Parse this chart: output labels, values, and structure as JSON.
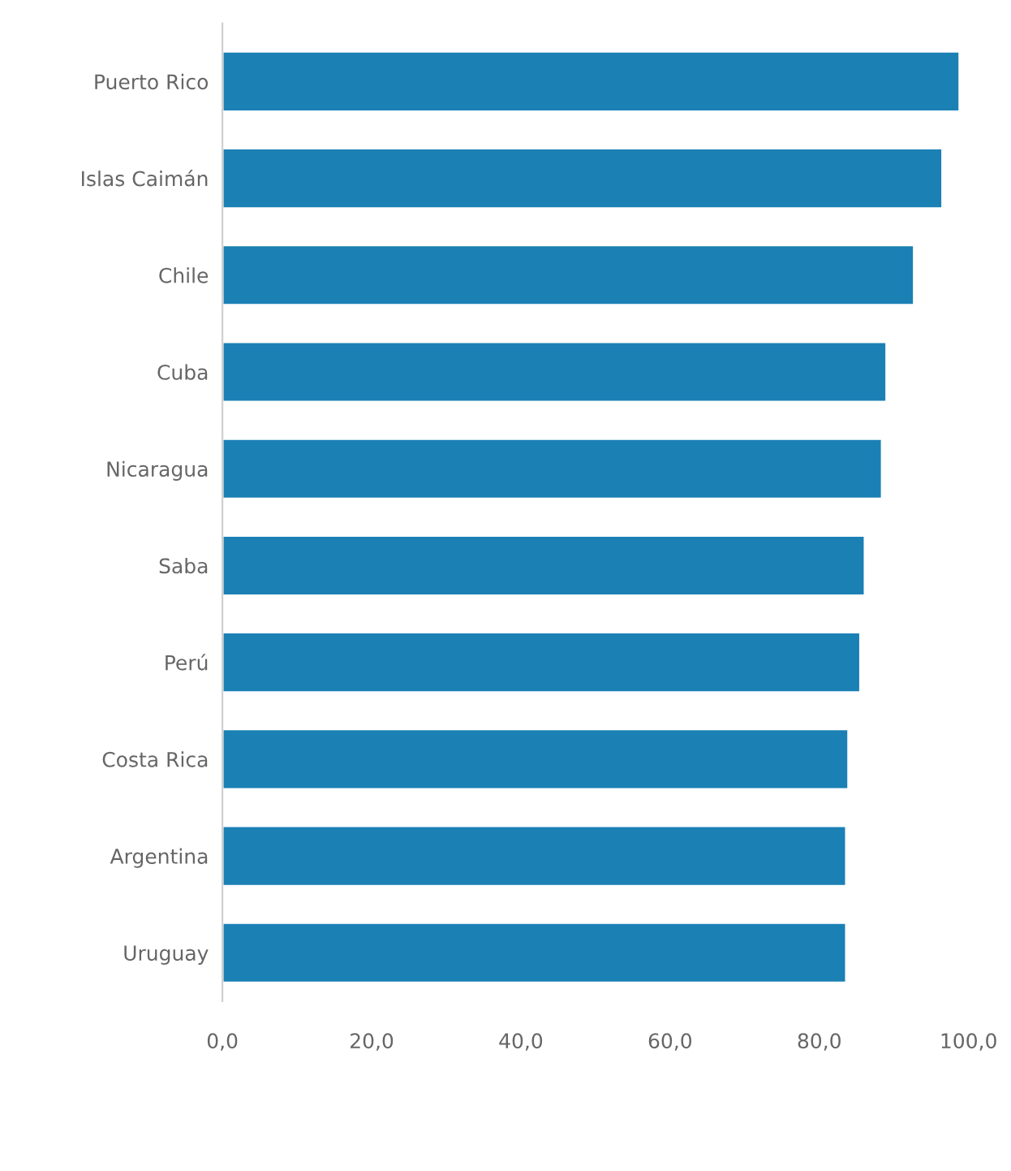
{
  "chart_data": {
    "type": "bar",
    "orientation": "horizontal",
    "categories": [
      "Puerto Rico",
      "Islas Caimán",
      "Chile",
      "Cuba",
      "Nicaragua",
      "Saba",
      "Perú",
      "Costa Rica",
      "Argentina",
      "Uruguay"
    ],
    "values": [
      98.8,
      96.5,
      92.7,
      89.0,
      88.4,
      86.1,
      85.5,
      83.9,
      83.6,
      83.6
    ],
    "color": "#1b80b4",
    "xlim": [
      0,
      100
    ],
    "xticks": [
      {
        "value": 0,
        "label": "0,0"
      },
      {
        "value": 20,
        "label": "20,0"
      },
      {
        "value": 40,
        "label": "40,0"
      },
      {
        "value": 60,
        "label": "60,0"
      },
      {
        "value": 80,
        "label": "80,0"
      },
      {
        "value": 100,
        "label": "100,0"
      }
    ],
    "grid": false
  }
}
